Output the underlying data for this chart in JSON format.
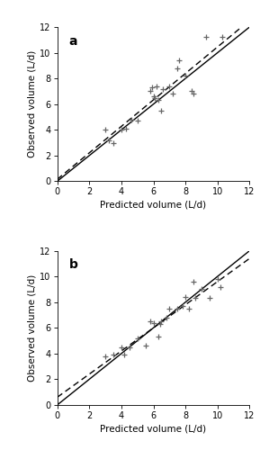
{
  "panel_a": {
    "label": "a",
    "points_x": [
      3.0,
      3.2,
      3.5,
      4.0,
      4.3,
      4.6,
      5.0,
      5.8,
      5.9,
      6.0,
      6.1,
      6.2,
      6.3,
      6.5,
      6.6,
      7.0,
      7.2,
      7.5,
      7.6,
      8.0,
      8.4,
      8.5,
      9.3,
      10.3
    ],
    "points_y": [
      4.0,
      3.2,
      3.0,
      4.0,
      4.1,
      4.8,
      4.7,
      7.0,
      7.3,
      6.6,
      6.5,
      7.4,
      6.3,
      5.5,
      7.2,
      7.4,
      6.8,
      8.8,
      9.4,
      8.2,
      7.0,
      6.8,
      11.2,
      11.2
    ],
    "dashed_slope": 1.03,
    "dashed_intercept": 0.15,
    "xlim": [
      0,
      12
    ],
    "ylim": [
      0,
      12
    ],
    "xticks": [
      0,
      2,
      4,
      6,
      8,
      10,
      12
    ],
    "yticks": [
      0,
      2,
      4,
      6,
      8,
      10,
      12
    ],
    "xlabel": "Predicted volume (L/d)",
    "ylabel": "Observed volume (L/d)"
  },
  "panel_b": {
    "label": "b",
    "points_x": [
      3.0,
      3.5,
      4.0,
      4.2,
      4.5,
      5.0,
      5.5,
      5.8,
      6.0,
      6.3,
      6.4,
      6.5,
      6.8,
      7.0,
      7.5,
      7.8,
      8.0,
      8.2,
      8.5,
      8.6,
      9.0,
      9.5,
      10.0,
      10.2
    ],
    "points_y": [
      3.8,
      3.9,
      4.5,
      3.9,
      4.5,
      5.2,
      4.6,
      6.5,
      6.4,
      5.3,
      6.3,
      6.5,
      6.8,
      7.5,
      7.5,
      7.7,
      8.4,
      7.5,
      9.6,
      8.3,
      9.0,
      8.3,
      9.8,
      9.2
    ],
    "dashed_slope": 0.9,
    "dashed_intercept": 0.6,
    "xlim": [
      0,
      12
    ],
    "ylim": [
      0,
      12
    ],
    "xticks": [
      0,
      2,
      4,
      6,
      8,
      10,
      12
    ],
    "yticks": [
      0,
      2,
      4,
      6,
      8,
      10,
      12
    ],
    "xlabel": "Predicted volume (L/d)",
    "ylabel": "Observed volume (L/d)"
  },
  "marker": "+",
  "marker_size": 4,
  "marker_color": "#666666",
  "marker_edge_width": 0.9,
  "solid_line_color": "#000000",
  "dashed_line_color": "#000000",
  "background_color": "#ffffff",
  "label_fontsize": 10,
  "tick_fontsize": 7,
  "axis_label_fontsize": 7.5,
  "line_width": 1.0,
  "dash_pattern": [
    5,
    3
  ]
}
